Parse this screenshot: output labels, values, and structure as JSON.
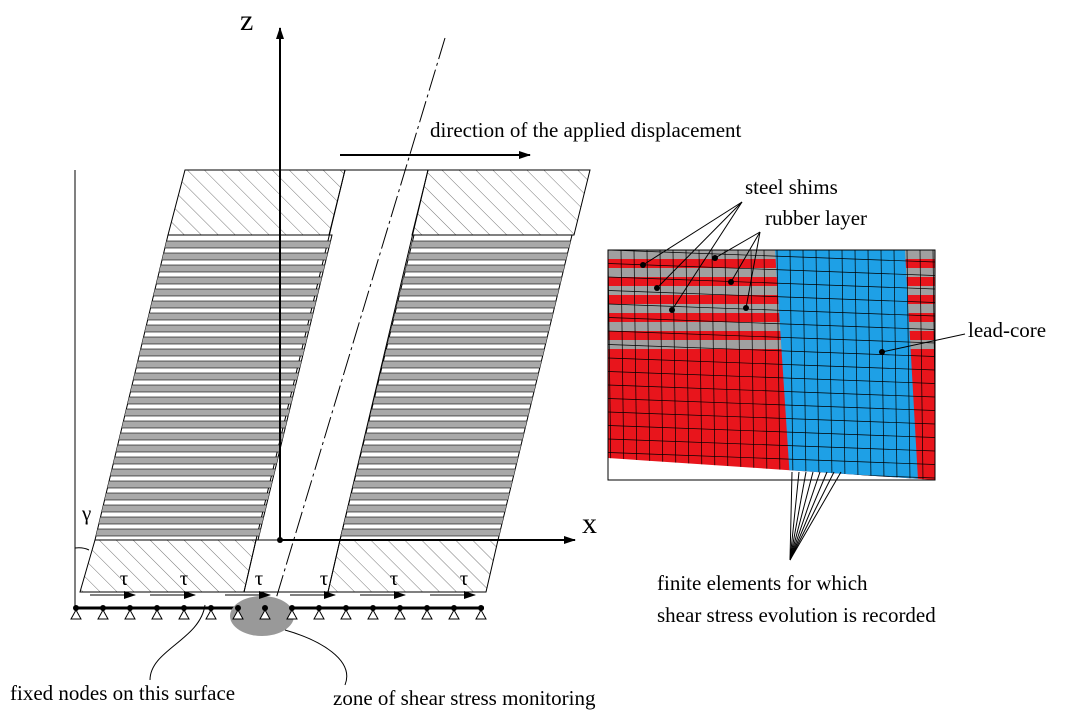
{
  "axes": {
    "z": "z",
    "x": "x",
    "gamma": "γ"
  },
  "tau_labels": [
    "τ",
    "τ",
    "τ",
    "τ",
    "τ",
    "τ"
  ],
  "labels": {
    "direction": "direction of the applied displacement",
    "steel_shims": "steel shims",
    "rubber_layer": "rubber layer",
    "lead_core": "lead-core",
    "finite_elements_1": "finite elements for which",
    "finite_elements_2": "shear stress evolution is recorded",
    "fixed_nodes": "fixed nodes on this surface",
    "zone": "zone of shear stress monitoring"
  }
}
